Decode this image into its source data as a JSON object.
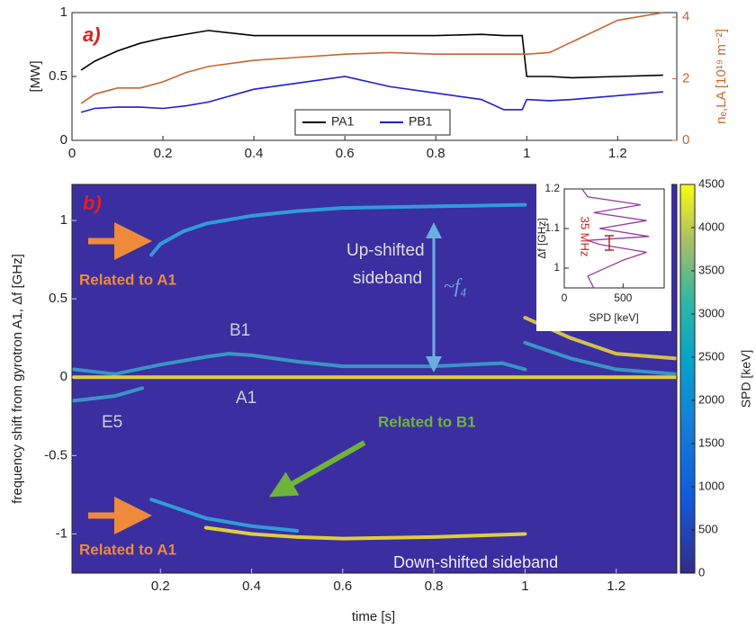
{
  "chart_data": [
    {
      "type": "line",
      "annotation": "a)",
      "ylabel": "[MW]",
      "y2label": "nₑ,LA [10¹⁹ m⁻²]",
      "x": [
        0.02,
        0.05,
        0.1,
        0.15,
        0.2,
        0.25,
        0.3,
        0.35,
        0.4,
        0.5,
        0.6,
        0.7,
        0.8,
        0.9,
        0.95,
        0.99,
        1.0,
        1.05,
        1.1,
        1.2,
        1.3
      ],
      "xlim": [
        0,
        1.33
      ],
      "xticks": [
        0,
        0.2,
        0.4,
        0.6,
        0.8,
        1,
        1.2
      ],
      "ylim": [
        0,
        1
      ],
      "yticks": [
        0,
        0.5,
        1
      ],
      "y2lim": [
        0,
        4.15
      ],
      "y2ticks": [
        0,
        2,
        4
      ],
      "y2color": "#c8662e",
      "series": [
        {
          "name": "PA1",
          "color": "#000000",
          "values": [
            0.55,
            0.62,
            0.7,
            0.76,
            0.8,
            0.83,
            0.86,
            0.84,
            0.82,
            0.82,
            0.82,
            0.82,
            0.82,
            0.83,
            0.82,
            0.82,
            0.5,
            0.5,
            0.49,
            0.5,
            0.51
          ]
        },
        {
          "name": "PB1",
          "color": "#1f1fd0",
          "values": [
            0.22,
            0.25,
            0.26,
            0.26,
            0.25,
            0.27,
            0.3,
            0.35,
            0.4,
            0.45,
            0.5,
            0.42,
            0.37,
            0.32,
            0.24,
            0.24,
            0.32,
            0.31,
            0.32,
            0.35,
            0.38
          ]
        },
        {
          "color": "#c8662e",
          "axis": "y2",
          "values": [
            1.2,
            1.5,
            1.7,
            1.7,
            1.9,
            2.2,
            2.4,
            2.5,
            2.6,
            2.7,
            2.8,
            2.85,
            2.8,
            2.8,
            2.8,
            2.8,
            2.8,
            2.85,
            3.2,
            3.9,
            4.15
          ]
        }
      ]
    },
    {
      "type": "spectrogram",
      "annotation": "b)",
      "xlabel": "time [s]",
      "ylabel": "frequency shift from gyrotron A1, Δf [GHz]",
      "xlim": [
        0.006,
        1.333
      ],
      "xticks": [
        0.2,
        0.4,
        0.6,
        0.8,
        1,
        1.2
      ],
      "ylim": [
        -1.25,
        1.23
      ],
      "yticks": [
        -1,
        -0.5,
        0,
        0.5,
        1
      ],
      "background": "#3b2ea0",
      "colorbar": {
        "label": "SPD [keV]",
        "lim": [
          0,
          4500
        ],
        "ticks": [
          0,
          500,
          1000,
          1500,
          2000,
          2500,
          3000,
          3500,
          4000,
          4500
        ]
      },
      "texts": {
        "related_a1": "Related to A1",
        "related_b1": "Related to B1",
        "up": [
          "Up-shifted",
          "sideband"
        ],
        "down": "Down-shifted sideband",
        "f4": "~f₄",
        "b1": "B1",
        "a1": "A1",
        "e5": "E5"
      },
      "series": [
        {
          "color": "#2fa8e0",
          "x": [
            0.18,
            0.2,
            0.25,
            0.3,
            0.4,
            0.5,
            0.6,
            0.8,
            1.0
          ],
          "values": [
            0.78,
            0.85,
            0.93,
            0.98,
            1.03,
            1.06,
            1.08,
            1.09,
            1.1
          ]
        },
        {
          "color": "#2fa8e0",
          "x": [
            0.18,
            0.25,
            0.3,
            0.4,
            0.5
          ],
          "values": [
            -0.78,
            -0.85,
            -0.9,
            -0.95,
            -0.98
          ]
        },
        {
          "color": "#f2e030",
          "x": [
            0.3,
            0.4,
            0.5,
            0.6,
            0.8,
            1.0
          ],
          "values": [
            -0.96,
            -1.0,
            -1.02,
            -1.03,
            -1.02,
            -1.0
          ]
        },
        {
          "color": "#3aa0c8",
          "x": [
            0.01,
            0.1,
            0.2,
            0.3,
            0.35,
            0.4,
            0.5,
            0.6,
            0.8,
            0.95,
            1.0
          ],
          "values": [
            0.05,
            0.02,
            0.08,
            0.13,
            0.15,
            0.14,
            0.1,
            0.07,
            0.07,
            0.09,
            0.05
          ]
        },
        {
          "color": "#f2e030",
          "x": [
            0.01,
            1.333
          ],
          "values": [
            0,
            0
          ]
        },
        {
          "color": "#3aa0c8",
          "x": [
            0.01,
            0.1,
            0.16
          ],
          "values": [
            -0.15,
            -0.12,
            -0.07
          ]
        },
        {
          "color": "#e8d040",
          "x": [
            1.0,
            1.1,
            1.2,
            1.33
          ],
          "values": [
            0.38,
            0.25,
            0.15,
            0.12
          ]
        },
        {
          "color": "#3aa0c8",
          "x": [
            1.0,
            1.1,
            1.2,
            1.33
          ],
          "values": [
            0.22,
            0.12,
            0.05,
            0.02
          ]
        }
      ]
    },
    {
      "type": "line",
      "xlabel": "SPD [keV]",
      "ylabel": "Δf [GHz]",
      "annotation": "35 MHz",
      "color": "#9a3aa0",
      "x": [
        250,
        200,
        500,
        700,
        300,
        200,
        720,
        300,
        700,
        250,
        650,
        200,
        150
      ],
      "values": [
        0.95,
        0.98,
        1.02,
        1.04,
        1.06,
        1.07,
        1.08,
        1.1,
        1.12,
        1.14,
        1.16,
        1.18,
        1.2
      ],
      "xlim": [
        0,
        850
      ],
      "xticks": [
        0,
        500
      ],
      "ylim": [
        0.95,
        1.2
      ],
      "yticks": [
        1,
        1.1,
        1.2
      ]
    }
  ]
}
